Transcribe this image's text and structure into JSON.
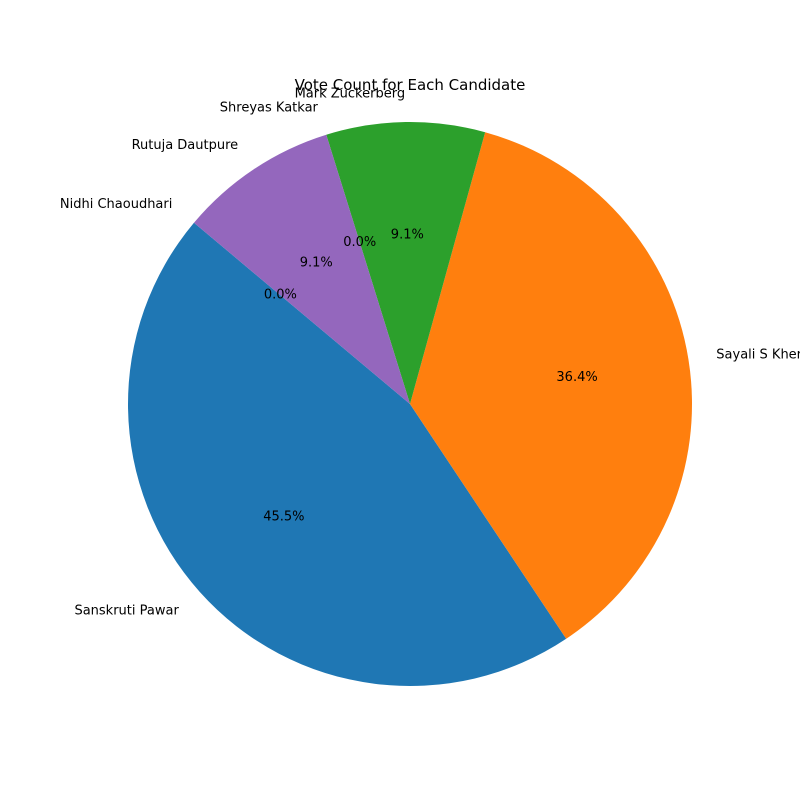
{
  "chart_data": {
    "type": "pie",
    "title": "Vote Count for Each Candidate",
    "categories": [
      "Sanskruti Pawar",
      "Sayali S Kher",
      "Mark Zuckerberg",
      "Shreyas Katkar",
      "Rutuja Dautpure",
      "Nidhi Chaoudhari"
    ],
    "percent_labels": [
      "45.5%",
      "36.4%",
      "9.1%",
      "0.0%",
      "9.1%",
      "0.0%"
    ],
    "values": [
      45.5,
      36.4,
      9.1,
      0.0,
      9.1,
      0.0
    ],
    "colors": [
      "#1f77b4",
      "#ff7f0e",
      "#2ca02c",
      "#d62728",
      "#9467bd",
      "#8c564b"
    ],
    "start_angle_deg": 140,
    "direction": "counterclockwise",
    "legend": "none"
  }
}
